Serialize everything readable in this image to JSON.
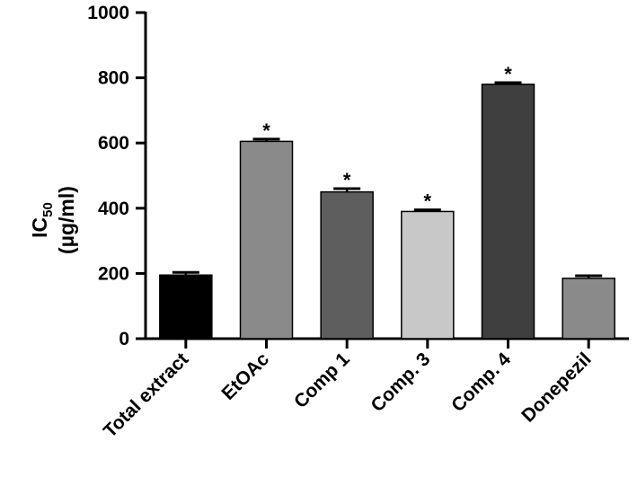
{
  "chart_data": {
    "type": "bar",
    "title": "",
    "xlabel": "",
    "ylabel": {
      "main": "IC",
      "subscript": "50",
      "unit": "(µg/ml)"
    },
    "ylim": [
      0,
      1000
    ],
    "yticks": [
      "0",
      "200",
      "400",
      "600",
      "800",
      "1000"
    ],
    "categories": [
      "Total extract",
      "EtOAc",
      "Comp 1",
      "Comp. 3",
      "Comp. 4",
      "Donepezil"
    ],
    "values": [
      195,
      605,
      450,
      390,
      780,
      185
    ],
    "errors": [
      8,
      7,
      10,
      5,
      5,
      8
    ],
    "significance": [
      "",
      "*",
      "*",
      "*",
      "*",
      ""
    ],
    "colors": [
      "#000000",
      "#8a8a8a",
      "#5e5e5e",
      "#c8c8c8",
      "#3f3f3f",
      "#8a8a8a"
    ],
    "grid": false,
    "legend": "none"
  }
}
